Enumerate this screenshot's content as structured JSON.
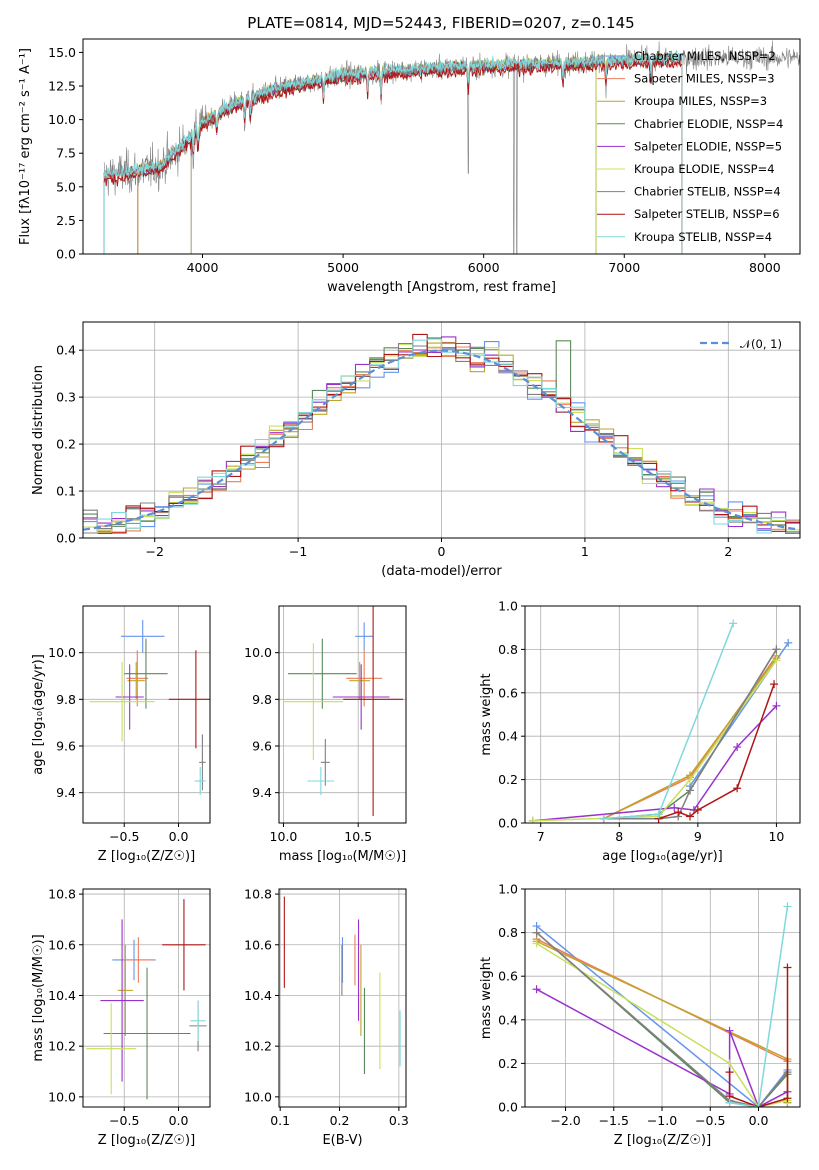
{
  "colors": {
    "MILES_Chabrier": "#6495ed",
    "MILES_Salpeter": "#ed7d5a",
    "MILES_Kroupa": "#bfa52a",
    "ELODIE_Chabrier": "#5a8a5a",
    "ELODIE_Salpeter": "#9932cc",
    "ELODIE_Kroupa": "#c8e05a",
    "STELIB_Chabrier": "#808080",
    "STELIB_Salpeter": "#b01515",
    "STELIB_Kroupa": "#7fd8dc"
  },
  "chart_data": [
    {
      "id": "spectrum",
      "type": "line",
      "title": "PLATE=0814, MJD=52443, FIBERID=0207, z=0.145",
      "xlabel": "wavelength [Angstrom, rest frame]",
      "ylabel": "Flux [fλ10⁻¹⁷ erg cm⁻² s⁻¹ A⁻¹]",
      "xlim": [
        3150,
        8250
      ],
      "ylim": [
        0,
        16
      ],
      "xticks": [
        4000,
        5000,
        6000,
        7000,
        8000
      ],
      "yticks": [
        0.0,
        2.5,
        5.0,
        7.5,
        10.0,
        12.5,
        15.0
      ],
      "grid": false,
      "legend_position": "top-right",
      "legend": [
        {
          "label": "Chabrier MILES, NSSP=2",
          "color_key": "MILES_Chabrier"
        },
        {
          "label": "Salpeter MILES, NSSP=3",
          "color_key": "MILES_Salpeter"
        },
        {
          "label": "Kroupa MILES, NSSP=3",
          "color_key": "MILES_Kroupa"
        },
        {
          "label": "Chabrier ELODIE, NSSP=4",
          "color_key": "ELODIE_Chabrier"
        },
        {
          "label": "Salpeter ELODIE, NSSP=5",
          "color_key": "ELODIE_Salpeter"
        },
        {
          "label": "Kroupa ELODIE, NSSP=4",
          "color_key": "ELODIE_Kroupa"
        },
        {
          "label": "Chabrier STELIB, NSSP=4",
          "color_key": "STELIB_Chabrier"
        },
        {
          "label": "Salpeter STELIB, NSSP=6",
          "color_key": "STELIB_Salpeter"
        },
        {
          "label": "Kroupa STELIB, NSSP=4",
          "color_key": "STELIB_Kroupa"
        }
      ],
      "continuum": {
        "x": [
          3300,
          3500,
          3700,
          3900,
          4000,
          4200,
          4500,
          4800,
          5000,
          5200,
          5500,
          5800,
          6000,
          6300,
          6600,
          6800,
          7000,
          7300,
          7500
        ],
        "y": [
          5.8,
          6.1,
          6.5,
          8.5,
          9.8,
          11.0,
          12.2,
          12.9,
          13.3,
          13.5,
          13.7,
          13.9,
          14.0,
          14.1,
          14.2,
          14.3,
          14.4,
          14.5,
          14.6
        ]
      },
      "model_ranges": [
        {
          "color_key": "MILES_Chabrier",
          "x": [
            3540,
            7410
          ]
        },
        {
          "color_key": "MILES_Salpeter",
          "x": [
            3540,
            7410
          ]
        },
        {
          "color_key": "MILES_Kroupa",
          "x": [
            3540,
            7410
          ]
        },
        {
          "color_key": "ELODIE_Chabrier",
          "x": [
            3920,
            6800
          ]
        },
        {
          "color_key": "ELODIE_Salpeter",
          "x": [
            3920,
            6800
          ]
        },
        {
          "color_key": "ELODIE_Kroupa",
          "x": [
            3920,
            6800
          ]
        },
        {
          "color_key": "STELIB_Chabrier",
          "x": [
            3300,
            7410
          ]
        },
        {
          "color_key": "STELIB_Salpeter",
          "x": [
            3300,
            7410
          ]
        },
        {
          "color_key": "STELIB_Kroupa",
          "x": [
            3300,
            7410
          ]
        }
      ]
    },
    {
      "id": "residuals",
      "type": "step",
      "xlabel": "(data-model)/error",
      "ylabel": "Normed distribution",
      "xlim": [
        -2.5,
        2.5
      ],
      "ylim": [
        0,
        0.46
      ],
      "xticks": [
        -2,
        -1,
        0,
        1,
        2
      ],
      "yticks": [
        0.0,
        0.1,
        0.2,
        0.3,
        0.4
      ],
      "grid": true,
      "legend_position": "top-right",
      "legend": [
        {
          "label": "𝒩(0, 1)",
          "color": "#5b8fd9",
          "style": "dashed"
        }
      ],
      "bins": {
        "start": -2.5,
        "width": 0.1,
        "count": 50
      }
    },
    {
      "id": "age_vs_Z",
      "type": "errorbar",
      "xlabel": "Z [log₁₀(Z/Z☉)]",
      "ylabel": "age  [log₁₀(age/yr)]",
      "xlim": [
        -0.88,
        0.29
      ],
      "ylim": [
        9.27,
        10.2
      ],
      "xticks": [
        -0.5,
        0.0
      ],
      "yticks": [
        9.4,
        9.6,
        9.8,
        10.0
      ],
      "grid": true,
      "points": [
        {
          "color_key": "MILES_Chabrier",
          "x": -0.33,
          "xerr": 0.2,
          "y": 10.07,
          "yerr": 0.07
        },
        {
          "color_key": "MILES_Salpeter",
          "x": -0.38,
          "xerr": 0.1,
          "y": 9.89,
          "yerr": 0.12
        },
        {
          "color_key": "MILES_Kroupa",
          "x": -0.39,
          "xerr": 0.08,
          "y": 9.88,
          "yerr": 0.08
        },
        {
          "color_key": "ELODIE_Chabrier",
          "x": -0.3,
          "xerr": 0.2,
          "y": 9.91,
          "yerr": 0.15
        },
        {
          "color_key": "ELODIE_Salpeter",
          "x": -0.45,
          "xerr": 0.13,
          "y": 9.81,
          "yerr": 0.14
        },
        {
          "color_key": "ELODIE_Kroupa",
          "x": -0.52,
          "xerr": 0.3,
          "y": 9.79,
          "yerr": 0.17
        },
        {
          "color_key": "STELIB_Chabrier",
          "x": 0.22,
          "xerr": 0.03,
          "y": 9.53,
          "yerr": 0.12
        },
        {
          "color_key": "STELIB_Salpeter",
          "x": 0.16,
          "xerr": 0.25,
          "y": 9.8,
          "yerr": 0.21
        },
        {
          "color_key": "STELIB_Kroupa",
          "x": 0.2,
          "xerr": 0.05,
          "y": 9.45,
          "yerr": 0.06
        }
      ]
    },
    {
      "id": "age_vs_mass",
      "type": "errorbar",
      "xlabel": "mass [log₁₀(M/M☉)]",
      "xlim": [
        9.97,
        10.82
      ],
      "ylim": [
        9.27,
        10.2
      ],
      "xticks": [
        10.0,
        10.5
      ],
      "yticks": [
        9.4,
        9.6,
        9.8,
        10.0
      ],
      "grid": true,
      "points": [
        {
          "color_key": "MILES_Chabrier",
          "x": 10.54,
          "xerr": 0.06,
          "y": 10.07,
          "yerr": 0.06
        },
        {
          "color_key": "MILES_Salpeter",
          "x": 10.54,
          "xerr": 0.12,
          "y": 9.89,
          "yerr": 0.12
        },
        {
          "color_key": "MILES_Kroupa",
          "x": 10.51,
          "xerr": 0.07,
          "y": 9.88,
          "yerr": 0.08
        },
        {
          "color_key": "ELODIE_Chabrier",
          "x": 10.26,
          "xerr": 0.23,
          "y": 9.91,
          "yerr": 0.15
        },
        {
          "color_key": "ELODIE_Salpeter",
          "x": 10.52,
          "xerr": 0.19,
          "y": 9.81,
          "yerr": 0.14
        },
        {
          "color_key": "ELODIE_Kroupa",
          "x": 10.2,
          "xerr": 0.2,
          "y": 9.79,
          "yerr": 0.25
        },
        {
          "color_key": "STELIB_Chabrier",
          "x": 10.28,
          "xerr": 0.03,
          "y": 9.53,
          "yerr": 0.1
        },
        {
          "color_key": "STELIB_Salpeter",
          "x": 10.6,
          "xerr": 0.2,
          "y": 9.8,
          "yerr": 0.5
        },
        {
          "color_key": "STELIB_Kroupa",
          "x": 10.25,
          "xerr": 0.09,
          "y": 9.45,
          "yerr": 0.06
        }
      ]
    },
    {
      "id": "weight_vs_age",
      "type": "line",
      "xlabel": "age  [log₁₀(age/yr)]",
      "ylabel": "mass weight",
      "xlim": [
        6.8,
        10.3
      ],
      "ylim": [
        0,
        1.0
      ],
      "xticks": [
        7,
        8,
        9,
        10
      ],
      "yticks": [
        0.0,
        0.2,
        0.4,
        0.6,
        0.8,
        1.0
      ],
      "grid": true,
      "series": [
        {
          "color_key": "MILES_Chabrier",
          "x": [
            8.9,
            10.15
          ],
          "y": [
            0.17,
            0.83
          ]
        },
        {
          "color_key": "MILES_Salpeter",
          "x": [
            7.8,
            8.9,
            10.0
          ],
          "y": [
            0.02,
            0.21,
            0.77
          ]
        },
        {
          "color_key": "MILES_Kroupa",
          "x": [
            7.8,
            8.9,
            10.0
          ],
          "y": [
            0.02,
            0.22,
            0.76
          ]
        },
        {
          "color_key": "ELODIE_Chabrier",
          "x": [
            7.8,
            8.5,
            8.9,
            10.0
          ],
          "y": [
            0.02,
            0.04,
            0.15,
            0.8
          ]
        },
        {
          "color_key": "ELODIE_Salpeter",
          "x": [
            6.9,
            8.7,
            8.95,
            9.5,
            10.0
          ],
          "y": [
            0.01,
            0.07,
            0.06,
            0.35,
            0.54
          ]
        },
        {
          "color_key": "ELODIE_Kroupa",
          "x": [
            6.9,
            8.5,
            8.9,
            10.0
          ],
          "y": [
            0.01,
            0.03,
            0.2,
            0.75
          ]
        },
        {
          "color_key": "STELIB_Chabrier",
          "x": [
            7.8,
            8.5,
            8.75,
            8.9,
            10.0
          ],
          "y": [
            0.02,
            0.02,
            0.03,
            0.15,
            0.8
          ]
        },
        {
          "color_key": "STELIB_Salpeter",
          "x": [
            8.5,
            8.75,
            8.9,
            9.0,
            9.5,
            9.97
          ],
          "y": [
            0.02,
            0.05,
            0.03,
            0.06,
            0.16,
            0.64
          ]
        },
        {
          "color_key": "STELIB_Kroupa",
          "x": [
            7.8,
            8.5,
            9.45
          ],
          "y": [
            0.02,
            0.04,
            0.92
          ]
        }
      ]
    },
    {
      "id": "mass_vs_Z",
      "type": "errorbar",
      "xlabel": "Z [log₁₀(Z/Z☉)]",
      "ylabel": "mass [log₁₀(M/M☉)]",
      "xlim": [
        -0.88,
        0.29
      ],
      "ylim": [
        9.96,
        10.82
      ],
      "xticks": [
        -0.5,
        0.0
      ],
      "yticks": [
        10.0,
        10.2,
        10.4,
        10.6,
        10.8
      ],
      "grid": true,
      "points": [
        {
          "color_key": "MILES_Chabrier",
          "x": -0.41,
          "xerr": 0.2,
          "y": 10.54,
          "yerr": 0.08
        },
        {
          "color_key": "MILES_Salpeter",
          "x": -0.37,
          "xerr": 0.13,
          "y": 10.54,
          "yerr": 0.09
        },
        {
          "color_key": "MILES_Kroupa",
          "x": -0.49,
          "xerr": 0.07,
          "y": 10.42,
          "yerr": 0.18
        },
        {
          "color_key": "ELODIE_Chabrier",
          "x": -0.29,
          "xerr": 0.4,
          "y": 10.25,
          "yerr": 0.26
        },
        {
          "color_key": "ELODIE_Salpeter",
          "x": -0.52,
          "xerr": 0.2,
          "y": 10.38,
          "yerr": 0.32
        },
        {
          "color_key": "ELODIE_Kroupa",
          "x": -0.62,
          "xerr": 0.23,
          "y": 10.19,
          "yerr": 0.18
        },
        {
          "color_key": "STELIB_Chabrier",
          "x": 0.18,
          "xerr": 0.08,
          "y": 10.28,
          "yerr": 0.1
        },
        {
          "color_key": "STELIB_Salpeter",
          "x": 0.05,
          "xerr": 0.2,
          "y": 10.6,
          "yerr": 0.18
        },
        {
          "color_key": "STELIB_Kroupa",
          "x": 0.18,
          "xerr": 0.07,
          "y": 10.3,
          "yerr": 0.08
        }
      ]
    },
    {
      "id": "mass_vs_ebv",
      "type": "errorbar",
      "xlabel": "E(B-V)",
      "xlim": [
        0.098,
        0.312
      ],
      "ylim": [
        9.96,
        10.82
      ],
      "xticks": [
        0.1,
        0.2,
        0.3
      ],
      "yticks": [
        10.0,
        10.2,
        10.4,
        10.6,
        10.8
      ],
      "grid": true,
      "points": [
        {
          "color_key": "MILES_Chabrier",
          "x": 0.205,
          "y": 10.54,
          "yerr": 0.09
        },
        {
          "color_key": "MILES_Salpeter",
          "x": 0.226,
          "y": 10.54,
          "yerr": 0.1
        },
        {
          "color_key": "MILES_Kroupa",
          "x": 0.236,
          "y": 10.42,
          "yerr": 0.18
        },
        {
          "color_key": "ELODIE_Chabrier",
          "x": 0.242,
          "y": 10.26,
          "yerr": 0.17
        },
        {
          "color_key": "ELODIE_Salpeter",
          "x": 0.232,
          "y": 10.5,
          "yerr": 0.2
        },
        {
          "color_key": "ELODIE_Kroupa",
          "x": 0.268,
          "y": 10.3,
          "yerr": 0.19
        },
        {
          "color_key": "STELIB_Chabrier",
          "x": 0.204,
          "y": 10.5,
          "yerr": 0.1
        },
        {
          "color_key": "STELIB_Salpeter",
          "x": 0.107,
          "y": 10.61,
          "yerr": 0.18
        },
        {
          "color_key": "STELIB_Kroupa",
          "x": 0.302,
          "y": 10.23,
          "yerr": 0.11
        }
      ]
    },
    {
      "id": "weight_vs_Z",
      "type": "line",
      "xlabel": "Z [log₁₀(Z/Z☉)]",
      "ylabel": "mass weight",
      "xlim": [
        -2.42,
        0.43
      ],
      "ylim": [
        0,
        1.0
      ],
      "xticks": [
        -2.0,
        -1.5,
        -1.0,
        -0.5,
        0.0
      ],
      "yticks": [
        0.0,
        0.2,
        0.4,
        0.6,
        0.8,
        1.0
      ],
      "grid": true,
      "series": [
        {
          "color_key": "MILES_Chabrier",
          "x": [
            -2.3,
            0.0,
            0.3
          ],
          "y": [
            0.83,
            0.0,
            0.17
          ]
        },
        {
          "color_key": "MILES_Salpeter",
          "x": [
            -2.3,
            0.3,
            0.3
          ],
          "y": [
            0.77,
            0.21,
            0.02
          ]
        },
        {
          "color_key": "MILES_Kroupa",
          "x": [
            -2.3,
            0.3,
            0.3
          ],
          "y": [
            0.76,
            0.22,
            0.02
          ]
        },
        {
          "color_key": "ELODIE_Chabrier",
          "x": [
            -2.3,
            -0.3,
            0.0,
            0.3
          ],
          "y": [
            0.8,
            0.02,
            0.0,
            0.15
          ]
        },
        {
          "color_key": "ELODIE_Salpeter",
          "x": [
            -2.3,
            -0.3,
            -0.3,
            0.0,
            0.3
          ],
          "y": [
            0.54,
            0.06,
            0.35,
            0.0,
            0.07
          ]
        },
        {
          "color_key": "ELODIE_Kroupa",
          "x": [
            -2.3,
            -0.3,
            0.0,
            0.3,
            0.3
          ],
          "y": [
            0.75,
            0.2,
            0.0,
            0.03,
            0.03
          ]
        },
        {
          "color_key": "STELIB_Chabrier",
          "x": [
            -2.3,
            -0.3,
            0.0,
            0.3
          ],
          "y": [
            0.8,
            0.03,
            0.0,
            0.16
          ]
        },
        {
          "color_key": "STELIB_Salpeter",
          "x": [
            -0.3,
            -0.3,
            0.0,
            0.3,
            0.3
          ],
          "y": [
            0.16,
            0.05,
            0.0,
            0.04,
            0.64
          ]
        },
        {
          "color_key": "STELIB_Kroupa",
          "x": [
            -0.3,
            0.0,
            0.3
          ],
          "y": [
            0.02,
            0.0,
            0.92
          ]
        }
      ]
    }
  ]
}
